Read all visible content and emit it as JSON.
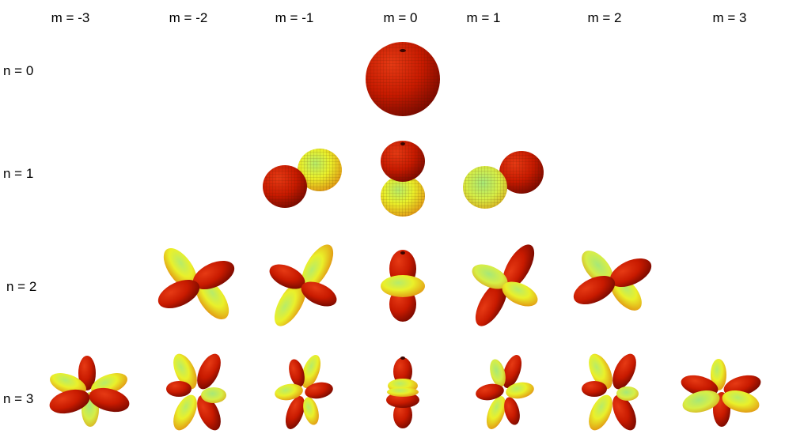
{
  "column_labels": [
    "m = -3",
    "m = -2",
    "m = -1",
    "m = 0",
    "m = 1",
    "m = 2",
    "m = 3"
  ],
  "row_labels": [
    "n = 0",
    "n = 1",
    "n = 2",
    "n = 3"
  ],
  "colors": {
    "red": "#c81a00",
    "dark_red": "#7a0a00",
    "yellow": "#f4ee1e",
    "green": "#9fe06a",
    "mesh": "#3b1a00"
  },
  "harmonics": [
    {
      "n": 0,
      "m": 0
    },
    {
      "n": 1,
      "m": -1
    },
    {
      "n": 1,
      "m": 0
    },
    {
      "n": 1,
      "m": 1
    },
    {
      "n": 2,
      "m": -2
    },
    {
      "n": 2,
      "m": -1
    },
    {
      "n": 2,
      "m": 0
    },
    {
      "n": 2,
      "m": 1
    },
    {
      "n": 2,
      "m": 2
    },
    {
      "n": 3,
      "m": -3
    },
    {
      "n": 3,
      "m": -2
    },
    {
      "n": 3,
      "m": -1
    },
    {
      "n": 3,
      "m": 0
    },
    {
      "n": 3,
      "m": 1
    },
    {
      "n": 3,
      "m": 2
    },
    {
      "n": 3,
      "m": 3
    }
  ]
}
